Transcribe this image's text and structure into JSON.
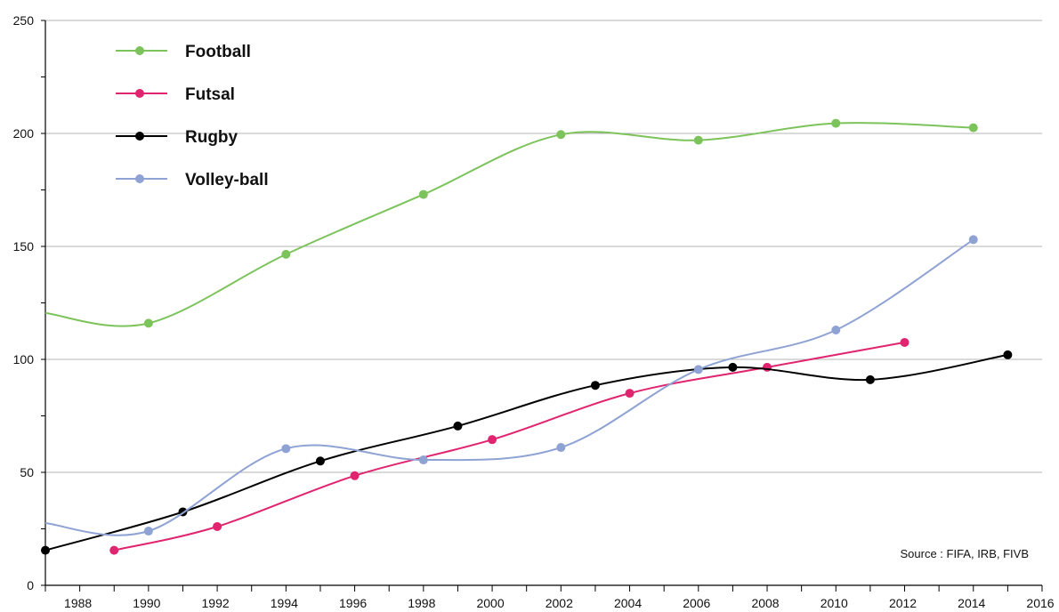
{
  "chart_data": {
    "type": "line",
    "title": "",
    "xlabel": "",
    "ylabel": "",
    "xlim": [
      1987,
      2016
    ],
    "ylim": [
      0,
      250
    ],
    "x_ticks": [
      1988,
      1990,
      1992,
      1994,
      1996,
      1998,
      2000,
      2002,
      2004,
      2006,
      2008,
      2010,
      2012,
      2014,
      2016
    ],
    "y_ticks": [
      0,
      50,
      100,
      150,
      200,
      250
    ],
    "grid": "horizontal",
    "legend_position": "top-left",
    "source": "Source : FIFA, IRB, FIVB",
    "series": [
      {
        "name": "Football",
        "color": "#7dc35b",
        "line_start": {
          "x": 1987,
          "y": 120.5
        },
        "points": [
          {
            "x": 1990,
            "y": 116
          },
          {
            "x": 1994,
            "y": 146.5
          },
          {
            "x": 1998,
            "y": 173
          },
          {
            "x": 2002,
            "y": 199.5
          },
          {
            "x": 2006,
            "y": 197
          },
          {
            "x": 2010,
            "y": 204.5
          },
          {
            "x": 2014,
            "y": 202.5
          }
        ]
      },
      {
        "name": "Futsal",
        "color": "#e0246f",
        "points": [
          {
            "x": 1989,
            "y": 15.5
          },
          {
            "x": 1992,
            "y": 26
          },
          {
            "x": 1996,
            "y": 48.5
          },
          {
            "x": 2000,
            "y": 64.5
          },
          {
            "x": 2004,
            "y": 85
          },
          {
            "x": 2008,
            "y": 96.5
          },
          {
            "x": 2012,
            "y": 107.5
          }
        ]
      },
      {
        "name": "Rugby",
        "color": "#000000",
        "points": [
          {
            "x": 1987,
            "y": 15.5
          },
          {
            "x": 1991,
            "y": 32.5
          },
          {
            "x": 1995,
            "y": 55
          },
          {
            "x": 1999,
            "y": 70.5
          },
          {
            "x": 2003,
            "y": 88.5
          },
          {
            "x": 2007,
            "y": 96.5
          },
          {
            "x": 2011,
            "y": 91
          },
          {
            "x": 2015,
            "y": 102
          }
        ]
      },
      {
        "name": "Volley-ball",
        "color": "#8fa2d4",
        "line_start": {
          "x": 1987,
          "y": 27.5
        },
        "points": [
          {
            "x": 1990,
            "y": 24
          },
          {
            "x": 1994,
            "y": 60.5
          },
          {
            "x": 1998,
            "y": 55.5
          },
          {
            "x": 2002,
            "y": 61
          },
          {
            "x": 2006,
            "y": 95.5
          },
          {
            "x": 2010,
            "y": 113
          },
          {
            "x": 2014,
            "y": 153
          }
        ]
      }
    ]
  }
}
